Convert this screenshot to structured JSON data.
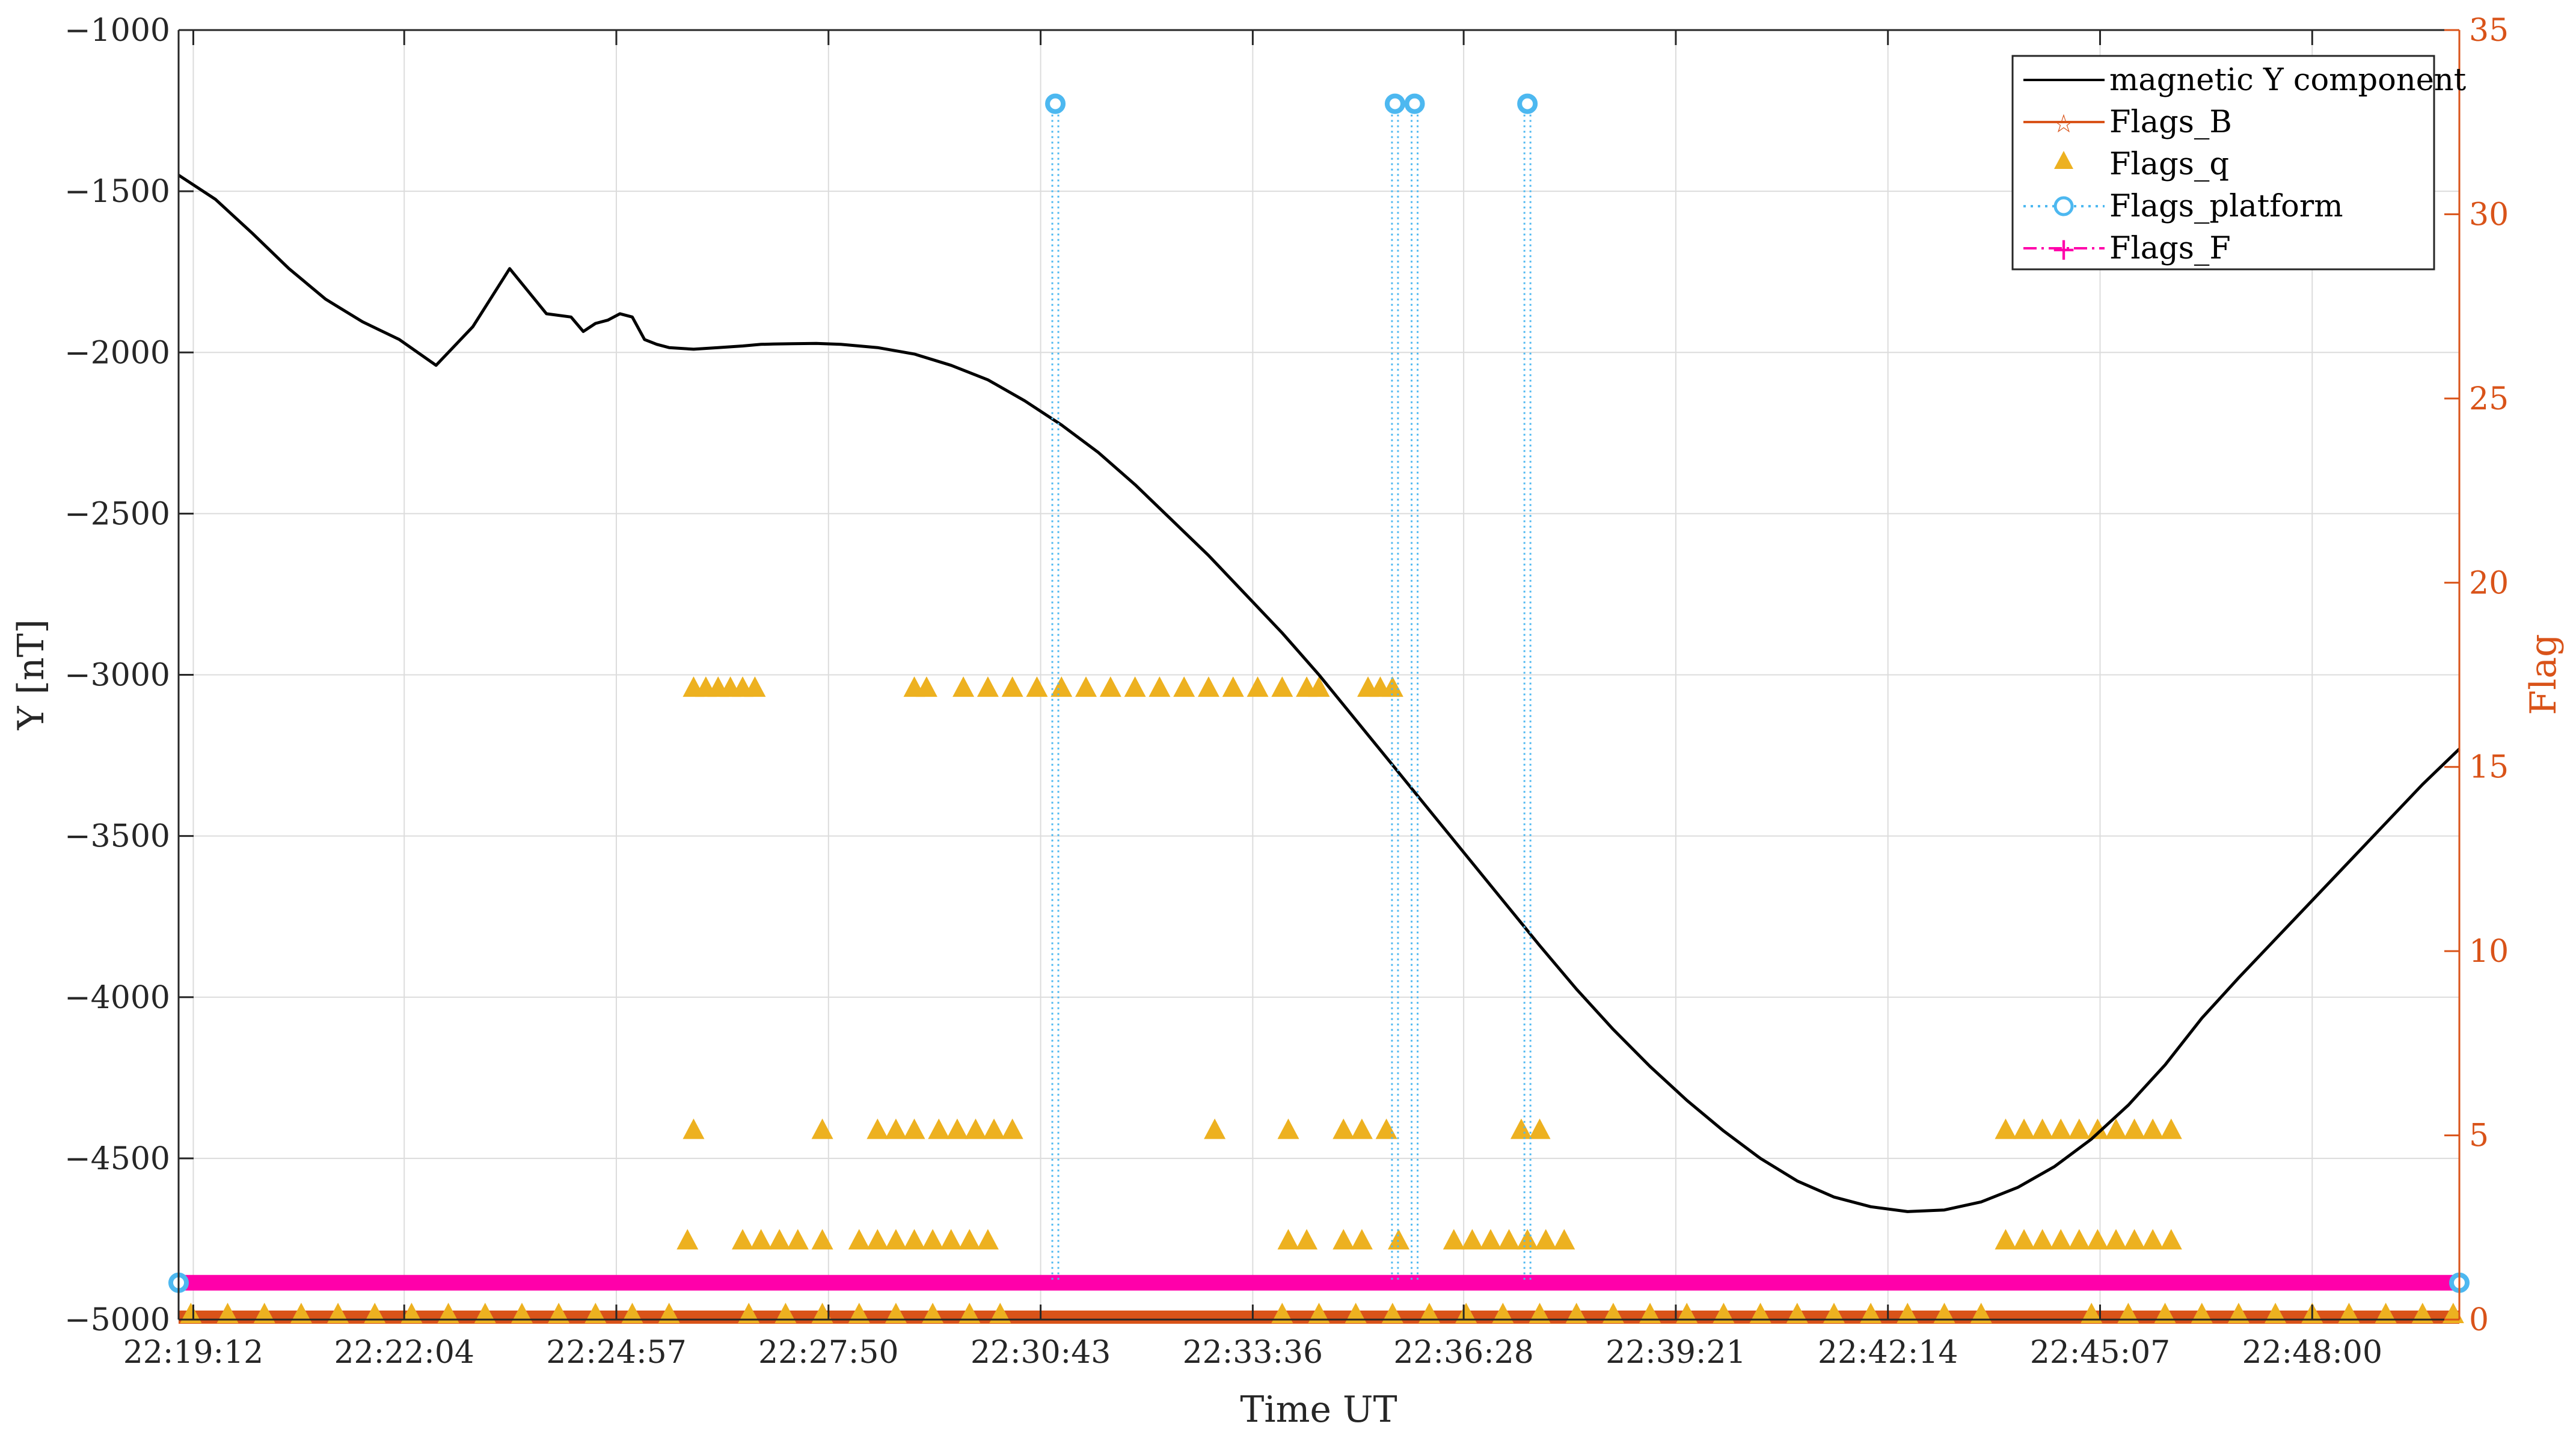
{
  "chart_data": {
    "type": "line",
    "xlabel": "Time UT",
    "ylabel_left": "Y [nT]",
    "ylabel_right": "Flag",
    "ylim_left": [
      -5000,
      -1000
    ],
    "ylim_right": [
      0,
      35
    ],
    "left_ticks": [
      "−1000",
      "−1500",
      "−2000",
      "−2500",
      "−3000",
      "−3500",
      "−4000",
      "−4500",
      "−5000"
    ],
    "right_ticks": [
      "0",
      "5",
      "10",
      "15",
      "20",
      "25",
      "30",
      "35"
    ],
    "x_ticks": [
      "22:19:12",
      "22:22:04",
      "22:24:57",
      "22:27:50",
      "22:30:43",
      "22:33:36",
      "22:36:28",
      "22:39:21",
      "22:42:14",
      "22:45:07",
      "22:48:00"
    ],
    "x_range": [
      "22:19:00",
      "22:50:00"
    ],
    "grid": true,
    "legend_position": "top-right",
    "colors": {
      "magnetic": "#000000",
      "flags_b": "#d95319",
      "flags_q": "#edb120",
      "flags_platform": "#4db8f0",
      "flags_f": "#ff00aa",
      "right_axis": "#d95319"
    },
    "series": [
      {
        "name": "magnetic Y component",
        "axis": "left",
        "style": "line",
        "x": [
          "22:19:00",
          "22:19:30",
          "22:20:00",
          "22:20:30",
          "22:21:00",
          "22:21:30",
          "22:22:00",
          "22:22:30",
          "22:23:00",
          "22:23:30",
          "22:24:00",
          "22:24:20",
          "22:24:30",
          "22:24:40",
          "22:24:50",
          "22:25:00",
          "22:25:10",
          "22:25:20",
          "22:25:30",
          "22:25:40",
          "22:26:00",
          "22:26:20",
          "22:26:40",
          "22:26:55",
          "22:27:05",
          "22:27:20",
          "22:27:40",
          "22:28:00",
          "22:28:30",
          "22:29:00",
          "22:29:30",
          "22:30:00",
          "22:30:30",
          "22:31:00",
          "22:31:30",
          "22:32:00",
          "22:32:30",
          "22:33:00",
          "22:33:30",
          "22:34:00",
          "22:34:30",
          "22:35:00",
          "22:35:30",
          "22:36:00",
          "22:36:30",
          "22:37:00",
          "22:37:30",
          "22:38:00",
          "22:38:30",
          "22:39:00",
          "22:39:30",
          "22:40:00",
          "22:40:30",
          "22:41:00",
          "22:41:30",
          "22:42:00",
          "22:42:30",
          "22:43:00",
          "22:43:30",
          "22:44:00",
          "22:44:30",
          "22:45:00",
          "22:45:30",
          "22:46:00",
          "22:46:30",
          "22:47:00",
          "22:47:30",
          "22:48:00",
          "22:48:30",
          "22:49:00",
          "22:49:30",
          "22:50:00"
        ],
        "values": [
          -1450,
          -1525,
          -1630,
          -1740,
          -1835,
          -1905,
          -1960,
          -2040,
          -1920,
          -1740,
          -1880,
          -1890,
          -1935,
          -1910,
          -1900,
          -1880,
          -1890,
          -1960,
          -1975,
          -1985,
          -1990,
          -1985,
          -1980,
          -1975,
          -1974,
          -1973,
          -1972,
          -1975,
          -1985,
          -2005,
          -2040,
          -2085,
          -2150,
          -2225,
          -2310,
          -2410,
          -2520,
          -2630,
          -2750,
          -2870,
          -3000,
          -3140,
          -3280,
          -3420,
          -3560,
          -3700,
          -3840,
          -3975,
          -4100,
          -4215,
          -4320,
          -4415,
          -4500,
          -4570,
          -4620,
          -4650,
          -4665,
          -4660,
          -4635,
          -4590,
          -4525,
          -4440,
          -4335,
          -4210,
          -4065,
          -3940,
          -3820,
          -3700,
          -3580,
          -3460,
          -3340,
          -3230
        ]
      },
      {
        "name": "Flags_B",
        "axis": "right",
        "style": "line-star",
        "segments": [
          {
            "start": "22:19:00",
            "end": "22:50:00",
            "value": 0
          }
        ]
      },
      {
        "name": "Flags_q",
        "axis": "right",
        "style": "triangle",
        "points": [
          {
            "x": "22:26:00",
            "y": 17
          },
          {
            "x": "22:26:10",
            "y": 17
          },
          {
            "x": "22:26:20",
            "y": 17
          },
          {
            "x": "22:26:30",
            "y": 17
          },
          {
            "x": "22:26:40",
            "y": 17
          },
          {
            "x": "22:26:50",
            "y": 17
          },
          {
            "x": "22:29:00",
            "y": 17
          },
          {
            "x": "22:29:10",
            "y": 17
          },
          {
            "x": "22:29:40",
            "y": 17
          },
          {
            "x": "22:30:00",
            "y": 17
          },
          {
            "x": "22:30:20",
            "y": 17
          },
          {
            "x": "22:30:40",
            "y": 17
          },
          {
            "x": "22:31:00",
            "y": 17
          },
          {
            "x": "22:31:20",
            "y": 17
          },
          {
            "x": "22:31:40",
            "y": 17
          },
          {
            "x": "22:32:00",
            "y": 17
          },
          {
            "x": "22:32:20",
            "y": 17
          },
          {
            "x": "22:32:40",
            "y": 17
          },
          {
            "x": "22:33:00",
            "y": 17
          },
          {
            "x": "22:33:20",
            "y": 17
          },
          {
            "x": "22:33:40",
            "y": 17
          },
          {
            "x": "22:34:00",
            "y": 17
          },
          {
            "x": "22:34:20",
            "y": 17
          },
          {
            "x": "22:34:30",
            "y": 17
          },
          {
            "x": "22:35:10",
            "y": 17
          },
          {
            "x": "22:35:20",
            "y": 17
          },
          {
            "x": "22:35:30",
            "y": 17
          },
          {
            "x": "22:26:00",
            "y": 5
          },
          {
            "x": "22:27:45",
            "y": 5
          },
          {
            "x": "22:28:30",
            "y": 5
          },
          {
            "x": "22:28:45",
            "y": 5
          },
          {
            "x": "22:29:00",
            "y": 5
          },
          {
            "x": "22:29:20",
            "y": 5
          },
          {
            "x": "22:29:35",
            "y": 5
          },
          {
            "x": "22:29:50",
            "y": 5
          },
          {
            "x": "22:30:05",
            "y": 5
          },
          {
            "x": "22:30:20",
            "y": 5
          },
          {
            "x": "22:33:05",
            "y": 5
          },
          {
            "x": "22:34:05",
            "y": 5
          },
          {
            "x": "22:34:50",
            "y": 5
          },
          {
            "x": "22:35:05",
            "y": 5
          },
          {
            "x": "22:35:25",
            "y": 5
          },
          {
            "x": "22:37:15",
            "y": 5
          },
          {
            "x": "22:37:30",
            "y": 5
          },
          {
            "x": "22:43:50",
            "y": 5
          },
          {
            "x": "22:44:05",
            "y": 5
          },
          {
            "x": "22:44:20",
            "y": 5
          },
          {
            "x": "22:44:35",
            "y": 5
          },
          {
            "x": "22:44:50",
            "y": 5
          },
          {
            "x": "22:45:05",
            "y": 5
          },
          {
            "x": "22:45:20",
            "y": 5
          },
          {
            "x": "22:45:35",
            "y": 5
          },
          {
            "x": "22:45:50",
            "y": 5
          },
          {
            "x": "22:46:05",
            "y": 5
          },
          {
            "x": "22:25:55",
            "y": 2
          },
          {
            "x": "22:26:40",
            "y": 2
          },
          {
            "x": "22:26:55",
            "y": 2
          },
          {
            "x": "22:27:10",
            "y": 2
          },
          {
            "x": "22:27:25",
            "y": 2
          },
          {
            "x": "22:27:45",
            "y": 2
          },
          {
            "x": "22:28:15",
            "y": 2
          },
          {
            "x": "22:28:30",
            "y": 2
          },
          {
            "x": "22:28:45",
            "y": 2
          },
          {
            "x": "22:29:00",
            "y": 2
          },
          {
            "x": "22:29:15",
            "y": 2
          },
          {
            "x": "22:29:30",
            "y": 2
          },
          {
            "x": "22:29:45",
            "y": 2
          },
          {
            "x": "22:30:00",
            "y": 2
          },
          {
            "x": "22:34:05",
            "y": 2
          },
          {
            "x": "22:34:20",
            "y": 2
          },
          {
            "x": "22:34:50",
            "y": 2
          },
          {
            "x": "22:35:05",
            "y": 2
          },
          {
            "x": "22:35:35",
            "y": 2
          },
          {
            "x": "22:36:20",
            "y": 2
          },
          {
            "x": "22:36:35",
            "y": 2
          },
          {
            "x": "22:36:50",
            "y": 2
          },
          {
            "x": "22:37:05",
            "y": 2
          },
          {
            "x": "22:37:20",
            "y": 2
          },
          {
            "x": "22:37:35",
            "y": 2
          },
          {
            "x": "22:37:50",
            "y": 2
          },
          {
            "x": "22:43:50",
            "y": 2
          },
          {
            "x": "22:44:05",
            "y": 2
          },
          {
            "x": "22:44:20",
            "y": 2
          },
          {
            "x": "22:44:35",
            "y": 2
          },
          {
            "x": "22:44:50",
            "y": 2
          },
          {
            "x": "22:45:05",
            "y": 2
          },
          {
            "x": "22:45:20",
            "y": 2
          },
          {
            "x": "22:45:35",
            "y": 2
          },
          {
            "x": "22:45:50",
            "y": 2
          },
          {
            "x": "22:46:05",
            "y": 2
          },
          {
            "x": "22:19:10",
            "y": 0
          },
          {
            "x": "22:19:40",
            "y": 0
          },
          {
            "x": "22:20:10",
            "y": 0
          },
          {
            "x": "22:20:40",
            "y": 0
          },
          {
            "x": "22:21:10",
            "y": 0
          },
          {
            "x": "22:21:40",
            "y": 0
          },
          {
            "x": "22:22:10",
            "y": 0
          },
          {
            "x": "22:22:40",
            "y": 0
          },
          {
            "x": "22:23:10",
            "y": 0
          },
          {
            "x": "22:23:40",
            "y": 0
          },
          {
            "x": "22:24:10",
            "y": 0
          },
          {
            "x": "22:24:40",
            "y": 0
          },
          {
            "x": "22:25:10",
            "y": 0
          },
          {
            "x": "22:25:40",
            "y": 0
          },
          {
            "x": "22:26:45",
            "y": 0
          },
          {
            "x": "22:27:15",
            "y": 0
          },
          {
            "x": "22:27:45",
            "y": 0
          },
          {
            "x": "22:28:15",
            "y": 0
          },
          {
            "x": "22:28:45",
            "y": 0
          },
          {
            "x": "22:29:15",
            "y": 0
          },
          {
            "x": "22:29:45",
            "y": 0
          },
          {
            "x": "22:30:10",
            "y": 0
          },
          {
            "x": "22:34:00",
            "y": 0
          },
          {
            "x": "22:34:30",
            "y": 0
          },
          {
            "x": "22:35:00",
            "y": 0
          },
          {
            "x": "22:35:30",
            "y": 0
          },
          {
            "x": "22:36:00",
            "y": 0
          },
          {
            "x": "22:36:30",
            "y": 0
          },
          {
            "x": "22:37:00",
            "y": 0
          },
          {
            "x": "22:37:30",
            "y": 0
          },
          {
            "x": "22:38:00",
            "y": 0
          },
          {
            "x": "22:38:30",
            "y": 0
          },
          {
            "x": "22:39:00",
            "y": 0
          },
          {
            "x": "22:39:30",
            "y": 0
          },
          {
            "x": "22:40:00",
            "y": 0
          },
          {
            "x": "22:40:30",
            "y": 0
          },
          {
            "x": "22:41:00",
            "y": 0
          },
          {
            "x": "22:41:30",
            "y": 0
          },
          {
            "x": "22:42:00",
            "y": 0
          },
          {
            "x": "22:42:30",
            "y": 0
          },
          {
            "x": "22:43:00",
            "y": 0
          },
          {
            "x": "22:43:30",
            "y": 0
          },
          {
            "x": "22:45:00",
            "y": 0
          },
          {
            "x": "22:45:30",
            "y": 0
          },
          {
            "x": "22:46:00",
            "y": 0
          },
          {
            "x": "22:46:30",
            "y": 0
          },
          {
            "x": "22:47:00",
            "y": 0
          },
          {
            "x": "22:47:30",
            "y": 0
          },
          {
            "x": "22:48:00",
            "y": 0
          },
          {
            "x": "22:48:30",
            "y": 0
          },
          {
            "x": "22:49:00",
            "y": 0
          },
          {
            "x": "22:49:30",
            "y": 0
          },
          {
            "x": "22:49:55",
            "y": 0
          }
        ]
      },
      {
        "name": "Flags_platform",
        "axis": "right",
        "style": "stem-circle",
        "points": [
          {
            "x": "22:30:55",
            "y": 33
          },
          {
            "x": "22:35:32",
            "y": 33
          },
          {
            "x": "22:35:48",
            "y": 33
          },
          {
            "x": "22:37:20",
            "y": 33
          },
          {
            "x": "22:19:00",
            "y": 1
          },
          {
            "x": "22:50:00",
            "y": 1
          }
        ]
      },
      {
        "name": "Flags_F",
        "axis": "right",
        "style": "line-plus",
        "segments": [
          {
            "start": "22:19:00",
            "end": "22:50:00",
            "value": 1
          }
        ]
      }
    ]
  }
}
